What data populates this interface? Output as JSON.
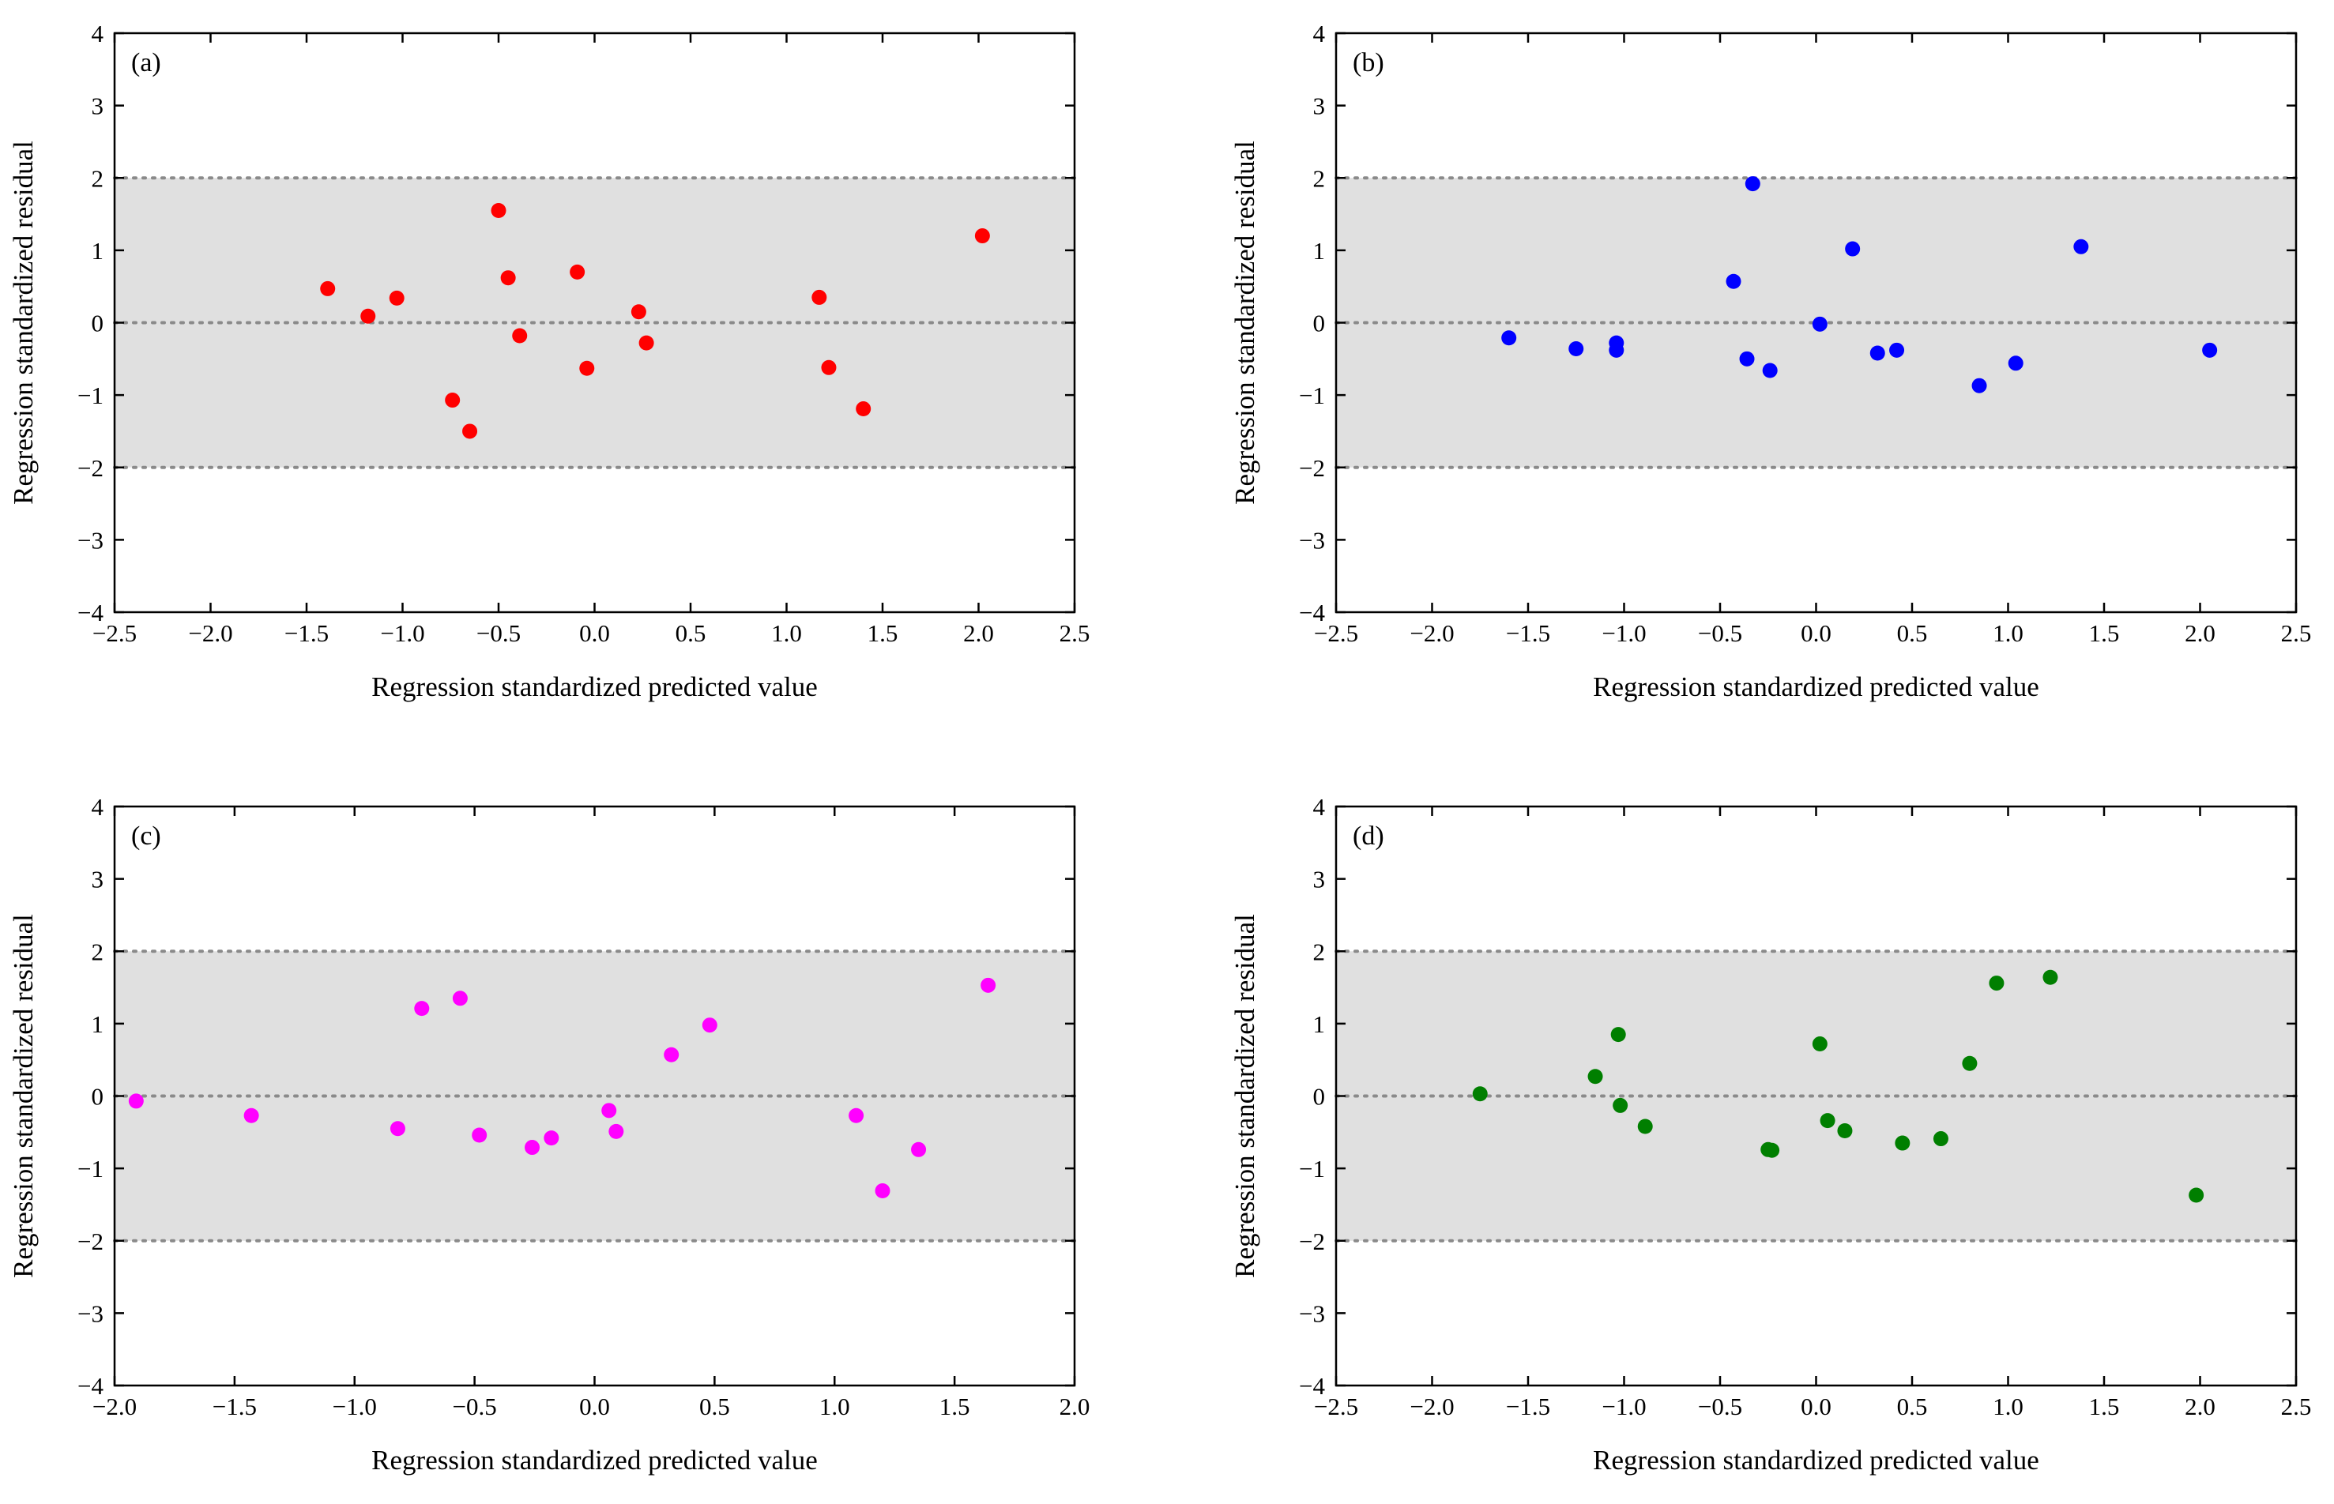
{
  "chart_data": [
    {
      "type": "scatter",
      "panel_label": "(a)",
      "xlabel": "Regression standardized predicted value",
      "ylabel": "Regression standardized residual",
      "xlim": [
        -2.5,
        2.5
      ],
      "ylim": [
        -4,
        4
      ],
      "xticks": [
        "−2.5",
        "−2.0",
        "−1.5",
        "−1.0",
        "−0.5",
        "0.0",
        "0.5",
        "1.0",
        "1.5",
        "2.0",
        "2.5"
      ],
      "xtick_values": [
        -2.5,
        -2.0,
        -1.5,
        -1.0,
        -0.5,
        0.0,
        0.5,
        1.0,
        1.5,
        2.0,
        2.5
      ],
      "yticks": [
        "4",
        "3",
        "2",
        "1",
        "0",
        "−1",
        "−2",
        "−3",
        "−4"
      ],
      "ytick_values": [
        4,
        3,
        2,
        1,
        0,
        -1,
        -2,
        -3,
        -4
      ],
      "band": [
        -2,
        2
      ],
      "reference_lines": [
        -2,
        0,
        2
      ],
      "color": "#ff0000",
      "x": [
        -1.39,
        -1.18,
        -1.03,
        -0.74,
        -0.65,
        -0.5,
        -0.45,
        -0.39,
        -0.09,
        -0.04,
        0.23,
        0.27,
        1.17,
        1.22,
        1.4,
        2.02
      ],
      "y": [
        0.47,
        0.09,
        0.34,
        -1.07,
        -1.5,
        1.55,
        0.62,
        -0.18,
        0.7,
        -0.63,
        0.15,
        -0.28,
        0.35,
        -0.62,
        -1.19,
        1.2
      ]
    },
    {
      "type": "scatter",
      "panel_label": "(b)",
      "xlabel": "Regression standardized predicted value",
      "ylabel": "Regression standardized residual",
      "xlim": [
        -2.5,
        2.5
      ],
      "ylim": [
        -4,
        4
      ],
      "xticks": [
        "−2.5",
        "−2.0",
        "−1.5",
        "−1.0",
        "−0.5",
        "0.0",
        "0.5",
        "1.0",
        "1.5",
        "2.0",
        "2.5"
      ],
      "xtick_values": [
        -2.5,
        -2.0,
        -1.5,
        -1.0,
        -0.5,
        0.0,
        0.5,
        1.0,
        1.5,
        2.0,
        2.5
      ],
      "yticks": [
        "4",
        "3",
        "2",
        "1",
        "0",
        "−1",
        "−2",
        "−3",
        "−4"
      ],
      "ytick_values": [
        4,
        3,
        2,
        1,
        0,
        -1,
        -2,
        -3,
        -4
      ],
      "band": [
        -2,
        2
      ],
      "reference_lines": [
        -2,
        0,
        2
      ],
      "color": "#0000ff",
      "x": [
        -1.6,
        -1.25,
        -1.04,
        -1.04,
        -0.43,
        -0.36,
        -0.33,
        -0.24,
        0.02,
        0.19,
        0.32,
        0.42,
        0.85,
        1.04,
        1.38,
        2.05
      ],
      "y": [
        -0.21,
        -0.36,
        -0.28,
        -0.38,
        0.57,
        -0.5,
        1.92,
        -0.66,
        -0.02,
        1.02,
        -0.42,
        -0.38,
        -0.87,
        -0.56,
        1.05,
        -0.38
      ]
    },
    {
      "type": "scatter",
      "panel_label": "(c)",
      "xlabel": "Regression standardized predicted value",
      "ylabel": "Regression standardized residual",
      "xlim": [
        -2.0,
        2.0
      ],
      "ylim": [
        -4,
        4
      ],
      "xticks": [
        "−2.0",
        "−1.5",
        "−1.0",
        "−0.5",
        "0.0",
        "0.5",
        "1.0",
        "1.5",
        "2.0"
      ],
      "xtick_values": [
        -2.0,
        -1.5,
        -1.0,
        -0.5,
        0.0,
        0.5,
        1.0,
        1.5,
        2.0
      ],
      "yticks": [
        "4",
        "3",
        "2",
        "1",
        "0",
        "−1",
        "−2",
        "−3",
        "−4"
      ],
      "ytick_values": [
        4,
        3,
        2,
        1,
        0,
        -1,
        -2,
        -3,
        -4
      ],
      "band": [
        -2,
        2
      ],
      "reference_lines": [
        -2,
        0,
        2
      ],
      "color": "#ff00ff",
      "x": [
        -1.91,
        -1.43,
        -0.82,
        -0.72,
        -0.56,
        -0.48,
        -0.26,
        -0.18,
        0.06,
        0.09,
        0.32,
        0.48,
        1.09,
        1.2,
        1.35,
        1.64
      ],
      "y": [
        -0.07,
        -0.27,
        -0.45,
        1.21,
        1.35,
        -0.54,
        -0.71,
        -0.58,
        -0.2,
        -0.49,
        0.57,
        0.98,
        -0.27,
        -1.31,
        -0.74,
        1.53
      ]
    },
    {
      "type": "scatter",
      "panel_label": "(d)",
      "xlabel": "Regression standardized predicted value",
      "ylabel": "Regression standardized residual",
      "xlim": [
        -2.5,
        2.5
      ],
      "ylim": [
        -4,
        4
      ],
      "xticks": [
        "−2.5",
        "−2.0",
        "−1.5",
        "−1.0",
        "−0.5",
        "0.0",
        "0.5",
        "1.0",
        "1.5",
        "2.0",
        "2.5"
      ],
      "xtick_values": [
        -2.5,
        -2.0,
        -1.5,
        -1.0,
        -0.5,
        0.0,
        0.5,
        1.0,
        1.5,
        2.0,
        2.5
      ],
      "yticks": [
        "4",
        "3",
        "2",
        "1",
        "0",
        "−1",
        "−2",
        "−3",
        "−4"
      ],
      "ytick_values": [
        4,
        3,
        2,
        1,
        0,
        -1,
        -2,
        -3,
        -4
      ],
      "band": [
        -2,
        2
      ],
      "reference_lines": [
        -2,
        0,
        2
      ],
      "color": "#007f00",
      "x": [
        -1.75,
        -1.15,
        -1.03,
        -1.02,
        -0.89,
        -0.25,
        -0.23,
        0.02,
        0.06,
        0.15,
        0.45,
        0.65,
        0.8,
        0.94,
        1.22,
        1.98
      ],
      "y": [
        0.03,
        0.27,
        0.85,
        -0.13,
        -0.42,
        -0.74,
        -0.75,
        0.72,
        -0.34,
        -0.48,
        -0.65,
        -0.59,
        0.45,
        1.56,
        1.64,
        -1.37
      ]
    }
  ]
}
